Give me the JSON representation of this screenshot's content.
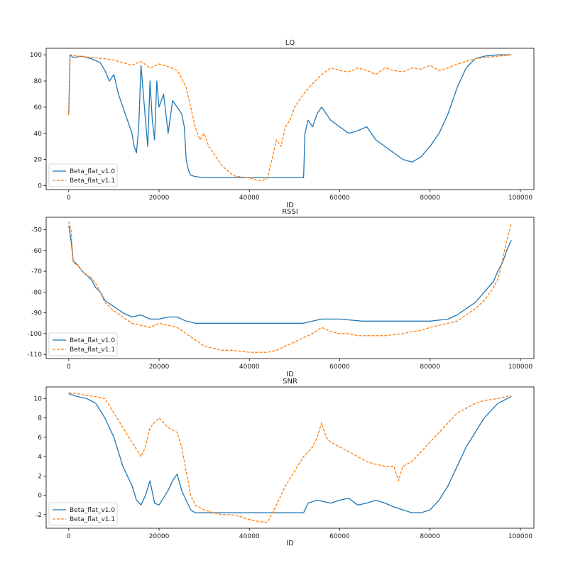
{
  "chart_data": [
    {
      "type": "line",
      "title": "LQ",
      "xlabel": "ID",
      "ylabel": "",
      "xlim": [
        -5000,
        103000
      ],
      "ylim": [
        -3,
        105
      ],
      "xticks": [
        0,
        20000,
        40000,
        60000,
        80000,
        100000
      ],
      "yticks": [
        0,
        20,
        40,
        60,
        80,
        100
      ],
      "legend": "lower-left",
      "grid": false,
      "series": [
        {
          "name": "Beta_flat_v1.0",
          "color": "#1f77b4",
          "style": "solid",
          "x": [
            0,
            300,
            1000,
            3000,
            5000,
            7000,
            8000,
            9000,
            10000,
            11000,
            12000,
            13000,
            14000,
            14500,
            15000,
            15500,
            16000,
            17000,
            17500,
            18000,
            18500,
            19000,
            19500,
            20000,
            21000,
            22000,
            23000,
            24000,
            25000,
            25600,
            26000,
            26500,
            27000,
            28000,
            30000,
            35000,
            40000,
            45000,
            50000,
            52000,
            52300,
            53000,
            54000,
            55000,
            56000,
            58000,
            60000,
            62000,
            64000,
            66000,
            68000,
            70000,
            72000,
            74000,
            76000,
            78000,
            80000,
            82000,
            84000,
            86000,
            88000,
            90000,
            92000,
            95000,
            98000
          ],
          "values": [
            54,
            100,
            98,
            99,
            97,
            94,
            88,
            80,
            85,
            70,
            60,
            50,
            40,
            30,
            25,
            45,
            92,
            50,
            30,
            80,
            50,
            35,
            80,
            60,
            70,
            40,
            65,
            60,
            55,
            45,
            20,
            12,
            8,
            7,
            6,
            6,
            6,
            6,
            6,
            6,
            40,
            50,
            45,
            55,
            60,
            50,
            45,
            40,
            42,
            45,
            35,
            30,
            25,
            20,
            18,
            22,
            30,
            40,
            55,
            75,
            90,
            97,
            99,
            100,
            100
          ]
        },
        {
          "name": "Beta_flat_v1.1",
          "color": "#ff7f0e",
          "style": "dashed",
          "x": [
            0,
            300,
            2000,
            5000,
            8000,
            10000,
            12000,
            14000,
            16000,
            18000,
            20000,
            22000,
            24000,
            25000,
            26000,
            27000,
            28000,
            29000,
            30000,
            31000,
            32000,
            33000,
            34000,
            35000,
            36000,
            37000,
            38000,
            39000,
            40000,
            41000,
            42000,
            43000,
            44000,
            45000,
            46000,
            47000,
            48000,
            49000,
            50000,
            51000,
            52000,
            54000,
            56000,
            58000,
            60000,
            62000,
            64000,
            66000,
            68000,
            70000,
            72000,
            74000,
            76000,
            78000,
            80000,
            82000,
            84000,
            86000,
            88000,
            90000,
            92000,
            95000,
            98000
          ],
          "values": [
            54,
            100,
            99,
            98,
            97,
            96,
            94,
            92,
            95,
            90,
            93,
            91,
            88,
            82,
            75,
            60,
            45,
            35,
            40,
            30,
            25,
            20,
            15,
            12,
            9,
            7,
            7,
            6,
            6,
            5,
            4,
            4,
            6,
            20,
            35,
            30,
            45,
            50,
            60,
            65,
            70,
            78,
            85,
            90,
            88,
            87,
            90,
            88,
            85,
            90,
            88,
            87,
            90,
            89,
            92,
            88,
            90,
            93,
            95,
            97,
            98,
            99,
            100
          ]
        }
      ]
    },
    {
      "type": "line",
      "title": "RSSI",
      "xlabel": "ID",
      "ylabel": "",
      "xlim": [
        -5000,
        103000
      ],
      "ylim": [
        -112,
        -44
      ],
      "xticks": [
        0,
        20000,
        40000,
        60000,
        80000,
        100000
      ],
      "yticks": [
        -110,
        -100,
        -90,
        -80,
        -70,
        -60,
        -50
      ],
      "legend": "lower-left",
      "grid": false,
      "series": [
        {
          "name": "Beta_flat_v1.0",
          "color": "#1f77b4",
          "style": "solid",
          "x": [
            0,
            500,
            1000,
            2000,
            3000,
            4000,
            5000,
            6000,
            7000,
            8000,
            10000,
            12000,
            14000,
            16000,
            18000,
            20000,
            22000,
            24000,
            26000,
            28000,
            30000,
            35000,
            40000,
            45000,
            50000,
            52000,
            54000,
            56000,
            60000,
            65000,
            70000,
            75000,
            80000,
            84000,
            86000,
            88000,
            90000,
            92000,
            94000,
            95000,
            96000,
            97000,
            98000
          ],
          "values": [
            -48,
            -55,
            -65,
            -67,
            -70,
            -72,
            -74,
            -78,
            -80,
            -84,
            -87,
            -90,
            -92,
            -91,
            -93,
            -93,
            -92,
            -92,
            -94,
            -95,
            -95,
            -95,
            -95,
            -95,
            -95,
            -95,
            -94,
            -93,
            -93,
            -94,
            -94,
            -94,
            -94,
            -93,
            -91,
            -88,
            -85,
            -80,
            -75,
            -70,
            -66,
            -60,
            -55
          ]
        },
        {
          "name": "Beta_flat_v1.1",
          "color": "#ff7f0e",
          "style": "dashed",
          "x": [
            0,
            500,
            1000,
            2000,
            3000,
            4000,
            5000,
            6000,
            7000,
            8000,
            10000,
            12000,
            14000,
            16000,
            18000,
            20000,
            22000,
            24000,
            26000,
            28000,
            30000,
            32000,
            34000,
            36000,
            38000,
            40000,
            42000,
            44000,
            46000,
            48000,
            50000,
            52000,
            54000,
            56000,
            58000,
            60000,
            62000,
            64000,
            66000,
            68000,
            70000,
            72000,
            74000,
            76000,
            78000,
            80000,
            82000,
            84000,
            86000,
            88000,
            90000,
            92000,
            94000,
            95000,
            96000,
            97000,
            98000
          ],
          "values": [
            -46,
            -50,
            -66,
            -67,
            -70,
            -72,
            -73,
            -76,
            -80,
            -85,
            -89,
            -92,
            -95,
            -96,
            -97,
            -95,
            -96,
            -97,
            -100,
            -103,
            -106,
            -107,
            -108,
            -108,
            -108.5,
            -109,
            -109,
            -109,
            -108,
            -106,
            -104,
            -102,
            -100,
            -97,
            -99,
            -100,
            -100,
            -101,
            -101,
            -101,
            -101,
            -100.5,
            -100,
            -99,
            -98.5,
            -97,
            -96,
            -95,
            -94,
            -91,
            -88,
            -84,
            -78,
            -74,
            -65,
            -55,
            -47
          ]
        }
      ]
    },
    {
      "type": "line",
      "title": "SNR",
      "xlabel": "ID",
      "ylabel": "",
      "xlim": [
        -5000,
        103000
      ],
      "ylim": [
        -3.4,
        11.2
      ],
      "xticks": [
        0,
        20000,
        40000,
        60000,
        80000,
        100000
      ],
      "yticks": [
        -2,
        0,
        2,
        4,
        6,
        8,
        10
      ],
      "legend": "lower-left",
      "grid": false,
      "series": [
        {
          "name": "Beta_flat_v1.0",
          "color": "#1f77b4",
          "style": "solid",
          "x": [
            0,
            2000,
            4000,
            6000,
            8000,
            10000,
            12000,
            14000,
            15000,
            16000,
            17000,
            18000,
            19000,
            20000,
            22000,
            23000,
            24000,
            25000,
            26000,
            27000,
            28000,
            30000,
            35000,
            40000,
            45000,
            50000,
            52000,
            53000,
            55000,
            58000,
            60000,
            62000,
            64000,
            66000,
            68000,
            70000,
            72000,
            74000,
            76000,
            78000,
            80000,
            82000,
            84000,
            86000,
            88000,
            90000,
            92000,
            95000,
            98000
          ],
          "values": [
            10.5,
            10.2,
            10,
            9.5,
            8,
            6,
            3,
            1,
            -0.5,
            -1,
            0,
            1.5,
            -0.8,
            -1,
            0.5,
            1.5,
            2.2,
            0.5,
            -0.5,
            -1.5,
            -1.8,
            -1.8,
            -1.8,
            -1.8,
            -1.8,
            -1.8,
            -1.8,
            -0.8,
            -0.5,
            -0.8,
            -0.5,
            -0.3,
            -1,
            -0.8,
            -0.5,
            -0.8,
            -1.2,
            -1.5,
            -1.8,
            -1.8,
            -1.5,
            -0.5,
            1,
            3,
            5,
            6.5,
            8,
            9.5,
            10.2
          ]
        },
        {
          "name": "Beta_flat_v1.1",
          "color": "#ff7f0e",
          "style": "dashed",
          "x": [
            0,
            2000,
            4000,
            6000,
            8000,
            10000,
            12000,
            14000,
            16000,
            17000,
            18000,
            20000,
            22000,
            24000,
            25000,
            26000,
            27000,
            28000,
            30000,
            32000,
            34000,
            36000,
            38000,
            40000,
            42000,
            44000,
            46000,
            48000,
            50000,
            52000,
            54000,
            55000,
            56000,
            57000,
            58000,
            60000,
            62000,
            64000,
            66000,
            68000,
            70000,
            72000,
            73000,
            74000,
            76000,
            78000,
            80000,
            82000,
            84000,
            86000,
            88000,
            90000,
            92000,
            95000,
            98000
          ],
          "values": [
            10.6,
            10.5,
            10.3,
            10.2,
            10,
            8.5,
            7,
            5.5,
            4,
            5,
            7,
            8,
            7,
            6.5,
            5,
            2.5,
            0,
            -1,
            -1.5,
            -1.8,
            -2,
            -2,
            -2.2,
            -2.5,
            -2.7,
            -2.8,
            -1,
            1,
            2.5,
            4,
            5,
            6,
            7.5,
            6,
            5.5,
            5,
            4.5,
            4,
            3.5,
            3.2,
            3,
            3,
            1.5,
            3,
            3.5,
            4.5,
            5.5,
            6.5,
            7.5,
            8.5,
            9,
            9.5,
            9.8,
            10,
            10.3
          ]
        }
      ]
    }
  ]
}
